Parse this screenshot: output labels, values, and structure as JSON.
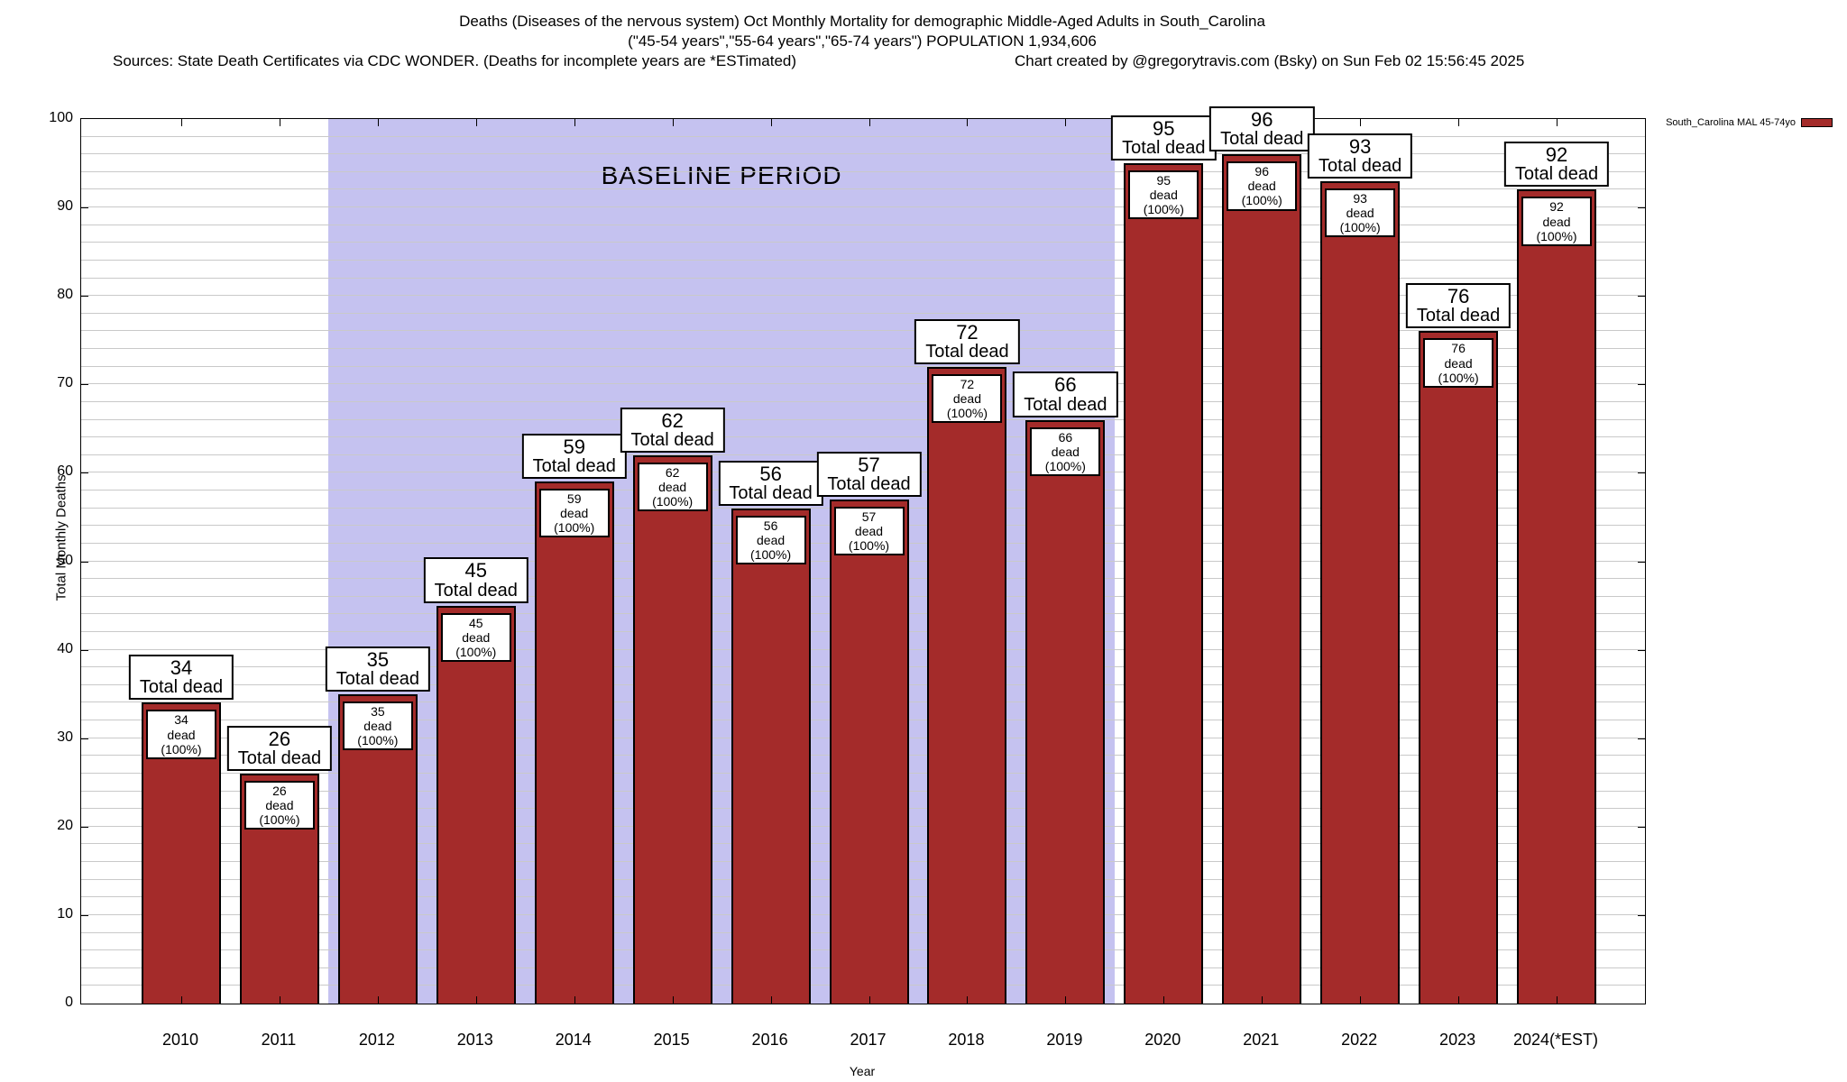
{
  "header": {
    "title_line1": "Deaths (Diseases of the nervous system) Oct Monthly Mortality for demographic Middle-Aged Adults in South_Carolina",
    "title_line2": "(\"45-54 years\",\"55-64 years\",\"65-74 years\") POPULATION 1,934,606",
    "sources": "Sources: State Death Certificates via CDC WONDER. (Deaths for incomplete years are *ESTimated)",
    "credit": "Chart created by @gregorytravis.com (Bsky) on Sun Feb 02 15:56:45 2025"
  },
  "legend": {
    "label": "South_Carolina MAL 45-74yo",
    "swatch_color": "#a42b2a"
  },
  "chart_data": {
    "type": "bar",
    "title": "Deaths (Diseases of the nervous system) Oct Monthly Mortality for demographic Middle-Aged Adults in South_Carolina",
    "xlabel": "Year",
    "ylabel": "Total Monthly Deaths",
    "ylim": [
      0,
      100
    ],
    "y_major_step": 10,
    "y_grid_step": 2,
    "grid": true,
    "legend_position": "top-right",
    "categories": [
      "2010",
      "2011",
      "2012",
      "2013",
      "2014",
      "2015",
      "2016",
      "2017",
      "2018",
      "2019",
      "2020",
      "2021",
      "2022",
      "2023",
      "2024(*EST)"
    ],
    "series": [
      {
        "name": "South_Carolina MAL 45-74yo",
        "color": "#a42b2a",
        "values": [
          34,
          26,
          35,
          45,
          59,
          62,
          56,
          57,
          72,
          66,
          95,
          96,
          93,
          76,
          92
        ]
      }
    ],
    "bar_top_label_suffix": "Total dead",
    "bar_inner_label_suffix": "dead (100%)",
    "baseline": {
      "label": "BASELINE PERIOD",
      "x_start_year": 2011.5,
      "x_end_year": 2019.5,
      "color": "#c5c2f0"
    }
  }
}
